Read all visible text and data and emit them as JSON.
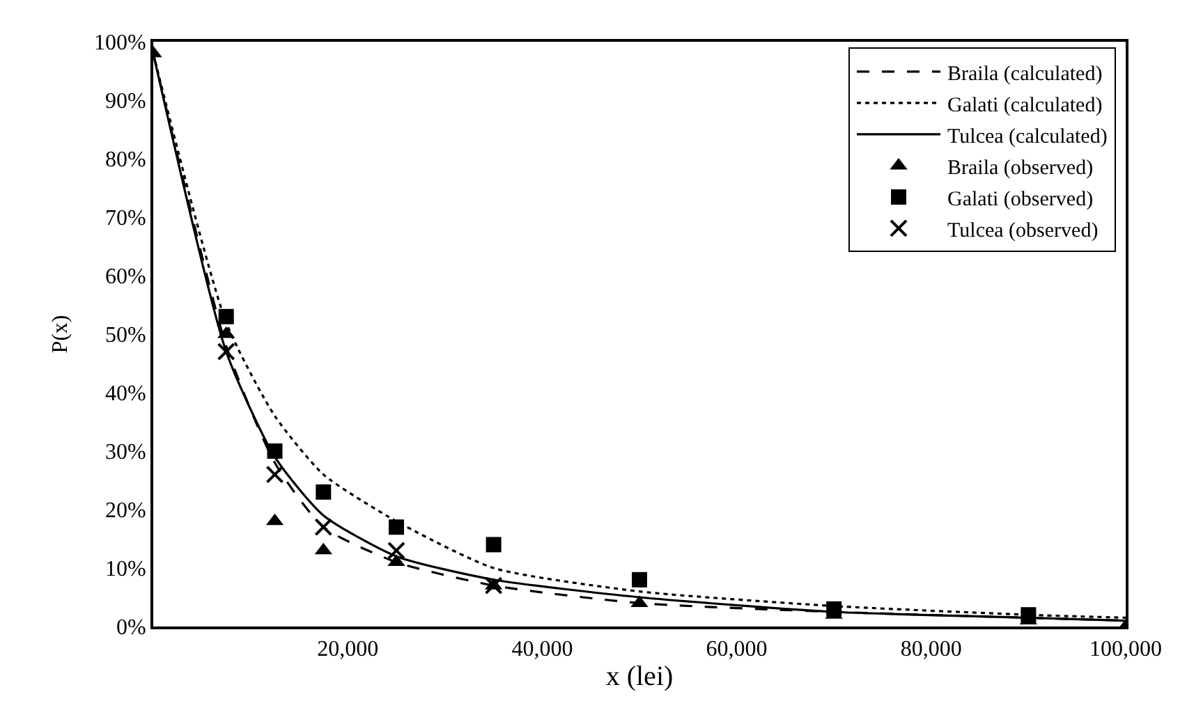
{
  "chart_data": {
    "type": "line",
    "xlabel": "x (lei)",
    "ylabel": "P(x)",
    "x": [
      0,
      7500,
      12500,
      17500,
      25000,
      35000,
      50000,
      70000,
      90000,
      100000
    ],
    "series": [
      {
        "name": "Braila (calculated)",
        "color": "#000000",
        "line_style": "dashed",
        "marker": "none",
        "values": [
          98,
          48,
          28,
          17,
          11,
          7,
          4,
          2.5,
          1.5,
          1
        ]
      },
      {
        "name": "Galati (calculated)",
        "color": "#000000",
        "line_style": "dotted",
        "marker": "none",
        "values": [
          98,
          52,
          36,
          26,
          18,
          10,
          6,
          3.5,
          2,
          1.5
        ]
      },
      {
        "name": "Tulcea (calculated)",
        "color": "#000000",
        "line_style": "solid",
        "marker": "none",
        "values": [
          98,
          47,
          29,
          19,
          12,
          8,
          5,
          2.5,
          1.5,
          1
        ]
      },
      {
        "name": "Braila (observed)",
        "type": "scatter",
        "color": "#000000",
        "marker": "triangle",
        "values": [
          98,
          50,
          18,
          13,
          11,
          7,
          4,
          2,
          1,
          0
        ]
      },
      {
        "name": "Galati (observed)",
        "type": "scatter",
        "color": "#000000",
        "marker": "square",
        "values": [
          null,
          53,
          30,
          23,
          17,
          14,
          8,
          3,
          2,
          null
        ]
      },
      {
        "name": "Tulcea (observed)",
        "type": "scatter",
        "color": "#000000",
        "marker": "cross",
        "values": [
          null,
          47,
          26,
          17,
          13,
          7,
          null,
          null,
          null,
          null
        ]
      }
    ],
    "xlim": [
      0,
      100000
    ],
    "xticks": [
      {
        "value": 20000,
        "label": "20,000"
      },
      {
        "value": 40000,
        "label": "40,000"
      },
      {
        "value": 60000,
        "label": "60,000"
      },
      {
        "value": 80000,
        "label": "80,000"
      },
      {
        "value": 100000,
        "label": "100,000"
      }
    ],
    "ylim": [
      0,
      100
    ],
    "yticks": [
      {
        "value": 0,
        "label": "0%"
      },
      {
        "value": 10,
        "label": "10%"
      },
      {
        "value": 20,
        "label": "20%"
      },
      {
        "value": 30,
        "label": "30%"
      },
      {
        "value": 40,
        "label": "40%"
      },
      {
        "value": 50,
        "label": "50%"
      },
      {
        "value": 60,
        "label": "60%"
      },
      {
        "value": 70,
        "label": "70%"
      },
      {
        "value": 80,
        "label": "80%"
      },
      {
        "value": 90,
        "label": "90%"
      },
      {
        "value": 100,
        "label": "100%"
      }
    ],
    "legend": "top right"
  }
}
